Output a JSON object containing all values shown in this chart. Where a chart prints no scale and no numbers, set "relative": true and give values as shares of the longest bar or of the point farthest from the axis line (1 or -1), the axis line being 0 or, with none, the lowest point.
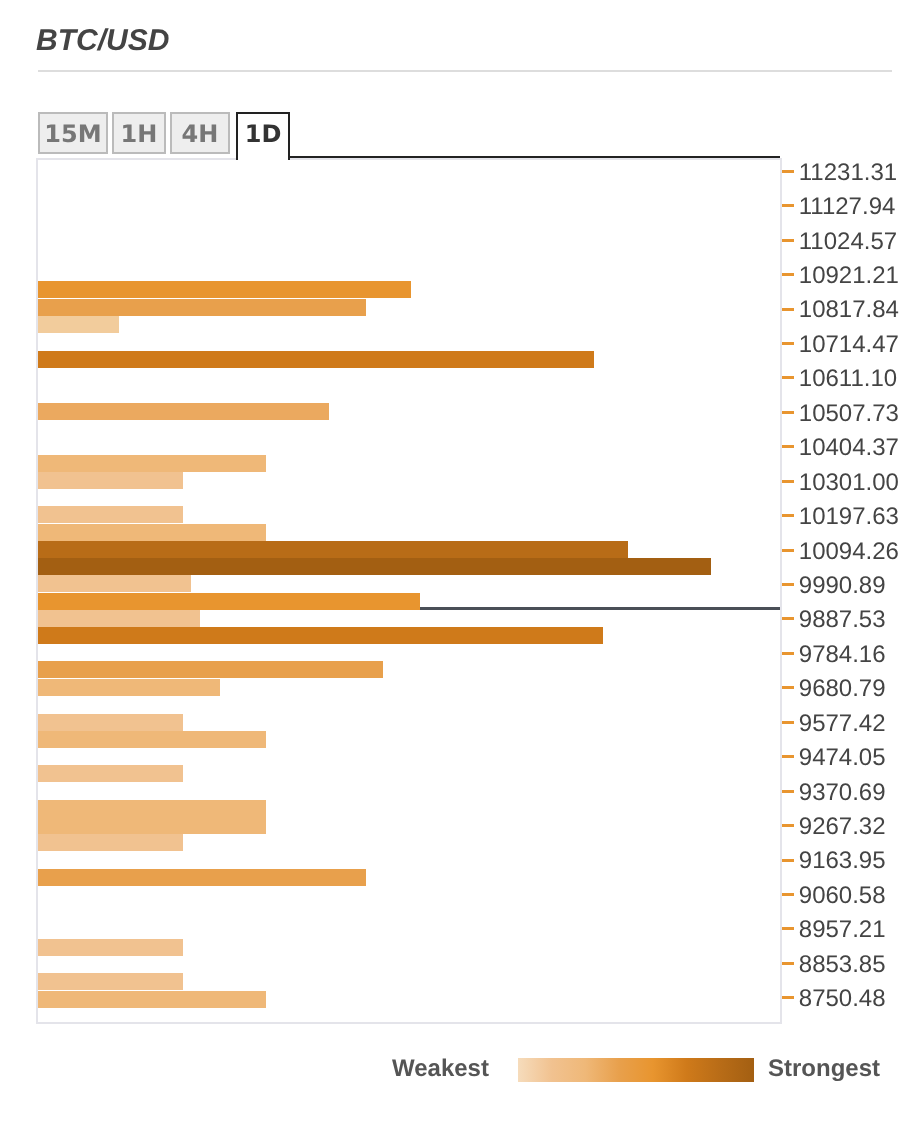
{
  "chart_data": {
    "type": "bar",
    "orientation": "horizontal",
    "relative": true,
    "title": "BTC/USD",
    "annotations": [
      "15M",
      "1H",
      "4H",
      "1D",
      "Weakest",
      "Strongest"
    ],
    "x": [
      10875,
      10823,
      10771,
      10666,
      10510,
      10355,
      10304,
      10200,
      10148,
      10095,
      10044,
      9993,
      9939,
      9889,
      9837,
      9735,
      9683,
      9577,
      9527,
      9424,
      9318,
      9268,
      9216,
      9112,
      8902,
      8799,
      8747
    ],
    "values": [
      0.554,
      0.487,
      0.121,
      0.827,
      0.432,
      0.339,
      0.215,
      0.215,
      0.339,
      0.877,
      1,
      0.227,
      0.568,
      0.241,
      0.84,
      0.513,
      0.271,
      0.215,
      0.339,
      0.215,
      0.339,
      0.339,
      0.215,
      0.487,
      0.215,
      0.215,
      0.339
    ],
    "colors": [
      "#e8952f",
      "#e8a04c",
      "#f2cc9c",
      "#cf7a1a",
      "#eba95f",
      "#efb878",
      "#f1c290",
      "#f1c290",
      "#efb878",
      "#b86c17",
      "#a35f12",
      "#f1c290",
      "#e8952f",
      "#f1c290",
      "#cf7a1a",
      "#e8a04c",
      "#efb878",
      "#f1c290",
      "#efb878",
      "#f1c290",
      "#efb878",
      "#efb878",
      "#f1c290",
      "#e8a04c",
      "#f1c290",
      "#f1c290",
      "#efb878"
    ],
    "ylim": [
      8678,
      11265
    ],
    "yticks": [
      11231.31,
      11127.94,
      11024.57,
      10921.21,
      10817.84,
      10714.47,
      {
        "value": 10611.1,
        "label": "10611.10"
      },
      10507.73,
      10404.37,
      {
        "value": 10301,
        "label": "10301.00"
      },
      10197.63,
      10094.26,
      9990.89,
      9887.53,
      9784.16,
      9680.79,
      9577.42,
      9474.05,
      9370.69,
      9267.32,
      9163.95,
      9060.58,
      8957.21,
      8853.85,
      8750.48
    ],
    "ref_lines": [
      {
        "axis": "y",
        "value": 9919,
        "color": "#4a4f57"
      }
    ],
    "grid": false
  }
}
